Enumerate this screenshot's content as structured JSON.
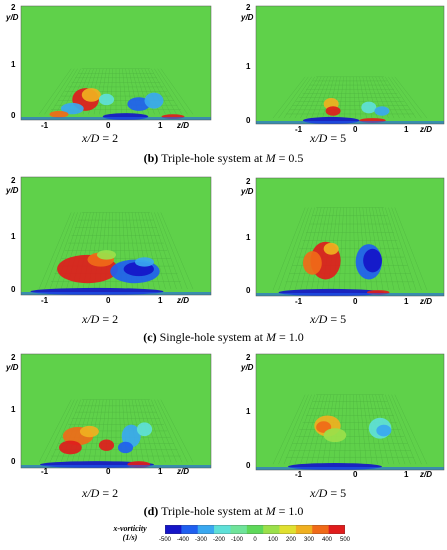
{
  "axes": {
    "y_label": "y/D",
    "z_label": "z/D"
  },
  "rows": [
    {
      "caption": {
        "letter": "(b)",
        "text": "Triple-hole system at",
        "m_symbol": "M",
        "m_value": "= 0.5"
      },
      "left": {
        "station": "x/D",
        "value": "= 2",
        "yticks": [
          "2",
          "1",
          "0"
        ],
        "zticks": [
          "-1",
          "0",
          "1"
        ]
      },
      "right": {
        "station": "x/D",
        "value": "= 5",
        "yticks": [
          "2",
          "1",
          "0"
        ],
        "zticks": [
          "-1",
          "0",
          "1"
        ]
      }
    },
    {
      "caption": {
        "letter": "(c)",
        "text": "Single-hole system at",
        "m_symbol": "M",
        "m_value": "= 1.0"
      },
      "left": {
        "station": "x/D",
        "value": "= 2",
        "yticks": [
          "2",
          "1",
          "0"
        ],
        "zticks": [
          "-1",
          "0",
          "1"
        ]
      },
      "right": {
        "station": "x/D",
        "value": "= 5",
        "yticks": [
          "2",
          "1",
          "0"
        ],
        "zticks": [
          "-1",
          "0",
          "1"
        ]
      }
    },
    {
      "caption": {
        "letter": "(d)",
        "text": "Triple-hole system at",
        "m_symbol": "M",
        "m_value": "= 1.0"
      },
      "left": {
        "station": "x/D",
        "value": "= 2",
        "yticks": [
          "2",
          "1",
          "0"
        ],
        "zticks": [
          "-1",
          "0",
          "1"
        ]
      },
      "right": {
        "station": "x/D",
        "value": "= 5",
        "yticks": [
          "2",
          "1",
          "0"
        ],
        "zticks": [
          "-1",
          "0",
          "1"
        ]
      }
    }
  ],
  "colorbar": {
    "title_line1": "x-vorticity",
    "title_line2": "(1/s)",
    "ticks": [
      "-500",
      "-400",
      "-300",
      "-200",
      "-100",
      "0",
      "100",
      "200",
      "300",
      "400",
      "500"
    ],
    "colors": [
      "#1515c8",
      "#1f5ff0",
      "#3aa8f0",
      "#5ee0d8",
      "#6fe39a",
      "#5ed85a",
      "#9be04a",
      "#e0e030",
      "#f0b020",
      "#f06a18",
      "#e01c1c"
    ]
  },
  "colors": {
    "background_field": "#5fd14a",
    "positive": "#e52020",
    "negative": "#2050e0"
  }
}
